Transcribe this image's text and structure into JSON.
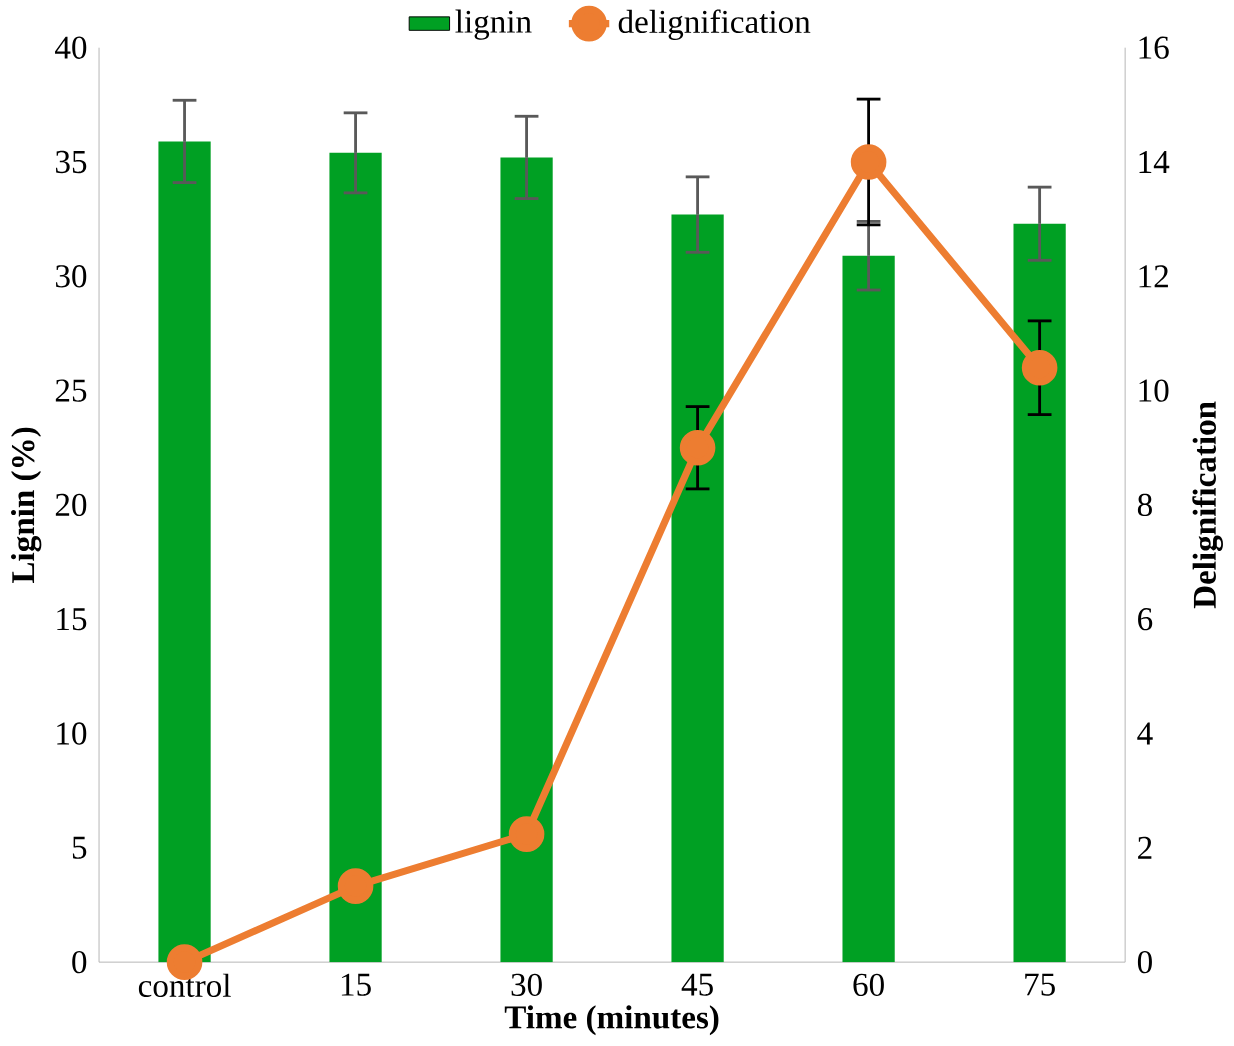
{
  "chart_data": {
    "type": "bar",
    "xlabel": "Time (minutes)",
    "ylabel": "Lignin (%)",
    "y2label": "Delignification",
    "categories": [
      "control",
      "15",
      "30",
      "45",
      "60",
      "75"
    ],
    "series": [
      {
        "name": "lignin",
        "color": "#00a023",
        "values": [
          35.9,
          35.4,
          35.2,
          32.7,
          30.9,
          32.3
        ],
        "errors": [
          1.8,
          1.75,
          1.8,
          1.65,
          1.5,
          1.6
        ]
      },
      {
        "name": "delignification",
        "type": "line",
        "axis": "y2",
        "color": "#ed7d31",
        "marker": "circle",
        "values": [
          0,
          1.33,
          2.24,
          9.0,
          14.0,
          10.4
        ],
        "errors": [
          null,
          null,
          null,
          0.72,
          1.1,
          0.82
        ]
      }
    ],
    "ylim": [
      0,
      40
    ],
    "yticks": [
      0,
      5,
      10,
      15,
      20,
      25,
      30,
      35,
      40
    ],
    "y2lim": [
      0,
      16
    ],
    "y2ticks": [
      0,
      2,
      4,
      6,
      8,
      10,
      12,
      14,
      16
    ],
    "legend": "top",
    "grid": false
  }
}
